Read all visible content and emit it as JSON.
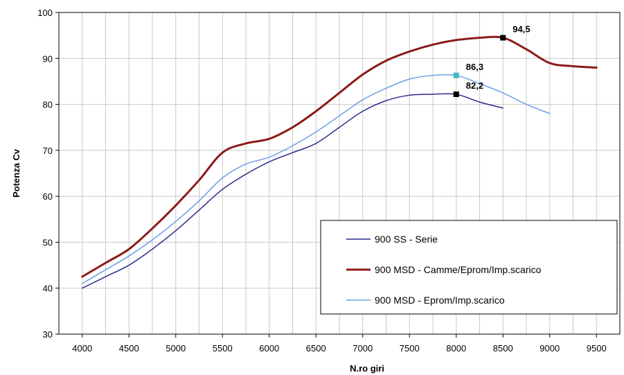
{
  "chart_data": {
    "type": "line",
    "xlabel": "N.ro giri",
    "ylabel": "Potenza Cv",
    "xlim": [
      3750,
      9750
    ],
    "ylim": [
      30,
      100
    ],
    "x_ticks": [
      4000,
      4500,
      5000,
      5500,
      6000,
      6500,
      7000,
      7500,
      8000,
      8500,
      9000,
      9500
    ],
    "y_ticks": [
      30,
      40,
      50,
      60,
      70,
      80,
      90,
      100
    ],
    "grid": true,
    "legend_position": "bottom-right",
    "series": [
      {
        "name": "900 SS - Serie",
        "color": "#2b2b8c",
        "x": [
          4000,
          4250,
          4500,
          4750,
          5000,
          5250,
          5500,
          5750,
          6000,
          6250,
          6500,
          6750,
          7000,
          7250,
          7500,
          7750,
          8000,
          8250,
          8500
        ],
        "y": [
          40.0,
          42.5,
          45.0,
          48.5,
          52.5,
          57.0,
          61.5,
          64.8,
          67.5,
          69.5,
          71.5,
          75.0,
          78.5,
          80.8,
          82.0,
          82.2,
          82.2,
          80.5,
          79.2
        ]
      },
      {
        "name": "900 MSD - Camme/Eprom/Imp.scarico",
        "color": "#8b1a1a",
        "x": [
          4000,
          4250,
          4500,
          4750,
          5000,
          5250,
          5500,
          5750,
          6000,
          6250,
          6500,
          6750,
          7000,
          7250,
          7500,
          7750,
          8000,
          8250,
          8500,
          8750,
          9000,
          9250,
          9500
        ],
        "y": [
          42.5,
          45.5,
          48.5,
          53.0,
          58.0,
          63.5,
          69.5,
          71.5,
          72.5,
          75.0,
          78.5,
          82.5,
          86.5,
          89.5,
          91.5,
          93.0,
          94.0,
          94.5,
          94.5,
          92.0,
          89.0,
          88.3,
          88.0
        ]
      },
      {
        "name": "900 MSD - Eprom/Imp.scarico",
        "color": "#6a9ee6",
        "x": [
          4000,
          4250,
          4500,
          4750,
          5000,
          5250,
          5500,
          5750,
          6000,
          6250,
          6500,
          6750,
          7000,
          7250,
          7500,
          7750,
          8000,
          8250,
          8500,
          8750,
          9000
        ],
        "y": [
          41.0,
          44.0,
          47.0,
          50.5,
          54.5,
          59.0,
          64.0,
          67.0,
          68.5,
          71.0,
          74.0,
          77.5,
          81.0,
          83.5,
          85.5,
          86.3,
          86.3,
          84.5,
          82.5,
          80.0,
          78.0
        ]
      }
    ],
    "annotations": [
      {
        "text": "94,5",
        "x": 8500,
        "y": 94.5,
        "marker_color": "#000000"
      },
      {
        "text": "86,3",
        "x": 8000,
        "y": 86.3,
        "marker_color": "#3fb6c6"
      },
      {
        "text": "82,2",
        "x": 8000,
        "y": 82.2,
        "marker_color": "#000000"
      }
    ]
  }
}
